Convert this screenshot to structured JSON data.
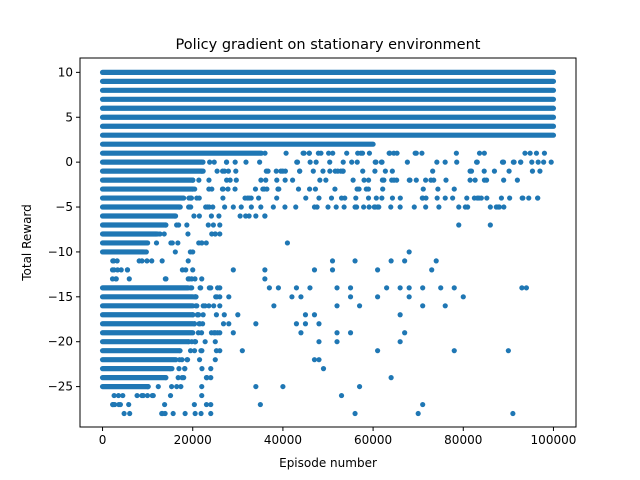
{
  "chart_data": {
    "type": "scatter",
    "title": "Policy gradient on stationary environment",
    "xlabel": "Episode number",
    "ylabel": "Total Reward",
    "xlim": [
      -5000,
      105000
    ],
    "ylim": [
      -29.5,
      11.6
    ],
    "xticks": [
      0,
      20000,
      40000,
      60000,
      80000,
      100000
    ],
    "xtick_labels": [
      "0",
      "20000",
      "40000",
      "60000",
      "80000",
      "100000"
    ],
    "yticks": [
      10,
      5,
      0,
      -5,
      -10,
      -15,
      -20,
      -25
    ],
    "ytick_labels": [
      "10",
      "5",
      "0",
      "−5",
      "−10",
      "−15",
      "−20",
      "−25"
    ],
    "grid": false,
    "series": [
      {
        "color": "#1f77b4",
        "continuous_bands": [
          {
            "y": 10,
            "x_start": 0,
            "x_end": 100000
          },
          {
            "y": 9,
            "x_start": 0,
            "x_end": 100000
          },
          {
            "y": 8,
            "x_start": 0,
            "x_end": 100000
          },
          {
            "y": 7,
            "x_start": 0,
            "x_end": 100000
          },
          {
            "y": 6,
            "x_start": 0,
            "x_end": 100000
          },
          {
            "y": 5,
            "x_start": 0,
            "x_end": 100000
          },
          {
            "y": 4,
            "x_start": 0,
            "x_end": 100000
          },
          {
            "y": 3,
            "x_start": 0,
            "x_end": 100000
          },
          {
            "y": 2,
            "x_start": 0,
            "x_end": 60000
          },
          {
            "y": 1,
            "x_start": 0,
            "x_end": 35000
          },
          {
            "y": 0,
            "x_start": 0,
            "x_end": 22000
          },
          {
            "y": -1,
            "x_start": 0,
            "x_end": 22000
          },
          {
            "y": -2,
            "x_start": 0,
            "x_end": 20000
          },
          {
            "y": -3,
            "x_start": 0,
            "x_end": 20000
          },
          {
            "y": -4,
            "x_start": 0,
            "x_end": 18000
          },
          {
            "y": -5,
            "x_start": 0,
            "x_end": 17000
          },
          {
            "y": -6,
            "x_start": 0,
            "x_end": 16000
          },
          {
            "y": -7,
            "x_start": 0,
            "x_end": 14000
          },
          {
            "y": -8,
            "x_start": 0,
            "x_end": 12000
          },
          {
            "y": -9,
            "x_start": 0,
            "x_end": 10000
          },
          {
            "y": -10,
            "x_start": 0,
            "x_end": 9000
          },
          {
            "y": -14,
            "x_start": 0,
            "x_end": 19000
          },
          {
            "y": -15,
            "x_start": 0,
            "x_end": 20000
          },
          {
            "y": -16,
            "x_start": 0,
            "x_end": 20000
          },
          {
            "y": -17,
            "x_start": 0,
            "x_end": 20000
          },
          {
            "y": -18,
            "x_start": 0,
            "x_end": 20000
          },
          {
            "y": -19,
            "x_start": 0,
            "x_end": 20000
          },
          {
            "y": -20,
            "x_start": 0,
            "x_end": 19000
          },
          {
            "y": -21,
            "x_start": 0,
            "x_end": 17000
          },
          {
            "y": -22,
            "x_start": 0,
            "x_end": 16000
          },
          {
            "y": -23,
            "x_start": 0,
            "x_end": 15000
          },
          {
            "y": -24,
            "x_start": 0,
            "x_end": 14000
          },
          {
            "y": -25,
            "x_start": 0,
            "x_end": 10000
          }
        ],
        "sparse_band_extents": [
          {
            "y": 1,
            "x_start": 35000,
            "x_end": 98000
          },
          {
            "y": 0,
            "x_start": 22000,
            "x_end": 99500
          },
          {
            "y": -1,
            "x_start": 22000,
            "x_end": 97000
          },
          {
            "y": -2,
            "x_start": 20000,
            "x_end": 92000
          },
          {
            "y": -3,
            "x_start": 20000,
            "x_end": 78000
          },
          {
            "y": -4,
            "x_start": 18000,
            "x_end": 96500
          },
          {
            "y": -5,
            "x_start": 17000,
            "x_end": 88000
          },
          {
            "y": -6,
            "x_start": 16000,
            "x_end": 36000
          },
          {
            "y": -7,
            "x_start": 14000,
            "x_end": 26000
          },
          {
            "y": -8,
            "x_start": 12000,
            "x_end": 25000
          },
          {
            "y": -9,
            "x_start": 10000,
            "x_end": 22000
          },
          {
            "y": -10,
            "x_start": 9000,
            "x_end": 20000
          },
          {
            "y": -11,
            "x_start": 2000,
            "x_end": 19000
          },
          {
            "y": -12,
            "x_start": 2000,
            "x_end": 20000
          },
          {
            "y": -13,
            "x_start": 2000,
            "x_end": 22000
          },
          {
            "y": -14,
            "x_start": 19000,
            "x_end": 26000
          },
          {
            "y": -15,
            "x_start": 20000,
            "x_end": 28000
          },
          {
            "y": -16,
            "x_start": 20000,
            "x_end": 26000
          },
          {
            "y": -17,
            "x_start": 20000,
            "x_end": 27000
          },
          {
            "y": -18,
            "x_start": 20000,
            "x_end": 28000
          },
          {
            "y": -19,
            "x_start": 20000,
            "x_end": 26000
          },
          {
            "y": -20,
            "x_start": 19000,
            "x_end": 25000
          },
          {
            "y": -21,
            "x_start": 17000,
            "x_end": 26000
          },
          {
            "y": -22,
            "x_start": 16000,
            "x_end": 25000
          },
          {
            "y": -23,
            "x_start": 15000,
            "x_end": 24000
          },
          {
            "y": -24,
            "x_start": 14000,
            "x_end": 24000
          },
          {
            "y": -25,
            "x_start": 10000,
            "x_end": 22000
          },
          {
            "y": -26,
            "x_start": 1000,
            "x_end": 22000
          },
          {
            "y": -27,
            "x_start": 2000,
            "x_end": 24000
          },
          {
            "y": -28,
            "x_start": 4000,
            "x_end": 24000
          }
        ],
        "points": [
          [
            36000,
            -6
          ],
          [
            34000,
            -6
          ],
          [
            29000,
            -5
          ],
          [
            33000,
            -5
          ],
          [
            47000,
            -5
          ],
          [
            50000,
            -5
          ],
          [
            56000,
            -5
          ],
          [
            61000,
            -5
          ],
          [
            66000,
            -5
          ],
          [
            79000,
            -5
          ],
          [
            86000,
            -5
          ],
          [
            89000,
            -5
          ],
          [
            48000,
            -4
          ],
          [
            53000,
            -4
          ],
          [
            71000,
            -4
          ],
          [
            76000,
            -4
          ],
          [
            84000,
            -4
          ],
          [
            96500,
            -4
          ],
          [
            79000,
            -7
          ],
          [
            86000,
            -7
          ],
          [
            26000,
            -8
          ],
          [
            23000,
            -9
          ],
          [
            41000,
            -9
          ],
          [
            68000,
            -10
          ],
          [
            47000,
            -12
          ],
          [
            51000,
            -11
          ],
          [
            56000,
            -11
          ],
          [
            64000,
            -11
          ],
          [
            67000,
            -11
          ],
          [
            74000,
            -11
          ],
          [
            29000,
            -12
          ],
          [
            36000,
            -12
          ],
          [
            51000,
            -12
          ],
          [
            61000,
            -12
          ],
          [
            73000,
            -12
          ],
          [
            19000,
            -13
          ],
          [
            36000,
            -13
          ],
          [
            24000,
            -14
          ],
          [
            37000,
            -14
          ],
          [
            39000,
            -14
          ],
          [
            43000,
            -14
          ],
          [
            46000,
            -14
          ],
          [
            52000,
            -14
          ],
          [
            55000,
            -14
          ],
          [
            63000,
            -14
          ],
          [
            66000,
            -14
          ],
          [
            68000,
            -14
          ],
          [
            71000,
            -14
          ],
          [
            75000,
            -14
          ],
          [
            78000,
            -14
          ],
          [
            93000,
            -14
          ],
          [
            94000,
            -14
          ],
          [
            26000,
            -15
          ],
          [
            42000,
            -15
          ],
          [
            44000,
            -15
          ],
          [
            55000,
            -15
          ],
          [
            61000,
            -15
          ],
          [
            68000,
            -15
          ],
          [
            80000,
            -15
          ],
          [
            38000,
            -16
          ],
          [
            52000,
            -16
          ],
          [
            57000,
            -16
          ],
          [
            71000,
            -16
          ],
          [
            76000,
            -16
          ],
          [
            30000,
            -17
          ],
          [
            45000,
            -17
          ],
          [
            47000,
            -17
          ],
          [
            66000,
            -17
          ],
          [
            34000,
            -18
          ],
          [
            43000,
            -18
          ],
          [
            45000,
            -18
          ],
          [
            48000,
            -18
          ],
          [
            29000,
            -19
          ],
          [
            44000,
            -19
          ],
          [
            52000,
            -19
          ],
          [
            55000,
            -19
          ],
          [
            67000,
            -19
          ],
          [
            48000,
            -20
          ],
          [
            52000,
            -20
          ],
          [
            66000,
            -20
          ],
          [
            31000,
            -21
          ],
          [
            61000,
            -21
          ],
          [
            78000,
            -21
          ],
          [
            90000,
            -21
          ],
          [
            47000,
            -22
          ],
          [
            48000,
            -22
          ],
          [
            49000,
            -23
          ],
          [
            64000,
            -24
          ],
          [
            34000,
            -25
          ],
          [
            40000,
            -25
          ],
          [
            57000,
            -25
          ],
          [
            53000,
            -26
          ],
          [
            35000,
            -27
          ],
          [
            71000,
            -27
          ],
          [
            56000,
            -28
          ],
          [
            70000,
            -28
          ],
          [
            91000,
            -28
          ]
        ]
      }
    ]
  }
}
